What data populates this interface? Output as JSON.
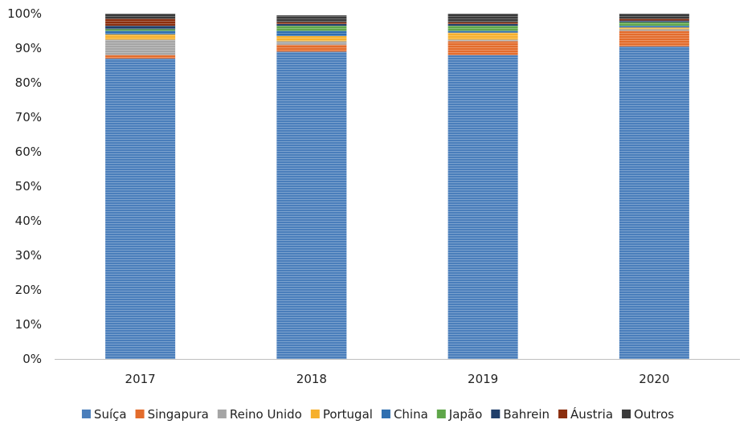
{
  "chart_data": {
    "type": "bar",
    "stacked": true,
    "categories": [
      "2017",
      "2018",
      "2019",
      "2020"
    ],
    "series": [
      {
        "name": "Suíça",
        "color": "#4a7ebb",
        "values": [
          87,
          89,
          88,
          90.5
        ]
      },
      {
        "name": "Singapura",
        "color": "#e36c2c",
        "values": [
          1,
          2,
          4,
          4.5
        ]
      },
      {
        "name": "Reino Unido",
        "color": "#a5a5a5",
        "values": [
          4.5,
          1,
          0.5,
          0.5
        ]
      },
      {
        "name": "Portugal",
        "color": "#f6b02c",
        "values": [
          1.5,
          1.5,
          2,
          0.5
        ]
      },
      {
        "name": "China",
        "color": "#2f6fb0",
        "values": [
          1,
          1.5,
          0.5,
          0.5
        ]
      },
      {
        "name": "Japão",
        "color": "#5fa64a",
        "values": [
          0.5,
          1.5,
          1.5,
          1
        ]
      },
      {
        "name": "Bahrein",
        "color": "#1f3e6a",
        "values": [
          1,
          0.5,
          0.5,
          0.5
        ]
      },
      {
        "name": "Áustria",
        "color": "#8b2e0e",
        "values": [
          2,
          0.5,
          0.5,
          0.5
        ]
      },
      {
        "name": "Outros",
        "color": "#3a3a3a",
        "values": [
          1.5,
          2,
          2.5,
          1.5
        ]
      }
    ],
    "yticks": [
      "0%",
      "10%",
      "20%",
      "30%",
      "40%",
      "50%",
      "60%",
      "70%",
      "80%",
      "90%",
      "100%"
    ],
    "ylim": [
      0,
      100
    ],
    "ylabel": "",
    "xlabel": "",
    "grid": false,
    "legend": "bottom"
  }
}
